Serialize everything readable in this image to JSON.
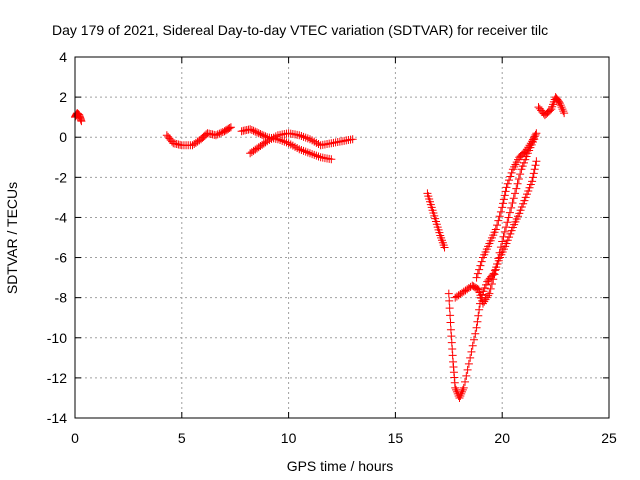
{
  "chart_data": {
    "type": "scatter",
    "title": "Day 179 of 2021, Sidereal Day-to-day VTEC variation (SDTVAR) for receiver tilc",
    "xlabel": "GPS time / hours",
    "ylabel": "SDTVAR / TECUs",
    "xlim": [
      0,
      25
    ],
    "ylim": [
      -14,
      4
    ],
    "xticks": [
      0,
      5,
      10,
      15,
      20,
      25
    ],
    "yticks": [
      -14,
      -12,
      -10,
      -8,
      -6,
      -4,
      -2,
      0,
      2,
      4
    ],
    "grid": true,
    "legend": "none",
    "marker": "plus",
    "colors": {
      "series": "#ff0000",
      "grid": "#a0a0a0",
      "axes": "#000000"
    },
    "segments": [
      {
        "x": [
          0.0,
          0.1,
          0.2,
          0.3
        ],
        "y": [
          1.0,
          1.2,
          1.1,
          0.8
        ]
      },
      {
        "x": [
          4.3,
          4.6,
          5.0,
          5.5,
          5.9,
          6.2,
          6.6,
          7.0,
          7.3
        ],
        "y": [
          0.1,
          -0.3,
          -0.4,
          -0.4,
          -0.1,
          0.2,
          0.1,
          0.3,
          0.5
        ]
      },
      {
        "x": [
          7.8,
          8.2,
          8.6,
          9.0,
          9.5,
          10.0,
          10.5,
          11.0,
          11.5,
          12.0
        ],
        "y": [
          0.3,
          0.4,
          0.2,
          0.0,
          -0.1,
          -0.3,
          -0.6,
          -0.8,
          -1.0,
          -1.1
        ]
      },
      {
        "x": [
          8.2,
          8.6,
          9.0,
          9.5,
          10.0,
          10.5,
          11.0,
          11.5,
          12.0,
          12.5,
          13.0
        ],
        "y": [
          -0.8,
          -0.5,
          -0.2,
          0.1,
          0.2,
          0.1,
          -0.1,
          -0.4,
          -0.3,
          -0.2,
          -0.1
        ]
      },
      {
        "x": [
          16.5,
          16.7,
          16.9,
          17.1,
          17.3
        ],
        "y": [
          -2.8,
          -3.5,
          -4.2,
          -4.9,
          -5.5
        ]
      },
      {
        "x": [
          17.5,
          17.6,
          17.7,
          17.8,
          18.0,
          18.2,
          18.5,
          18.8,
          19.0,
          19.3,
          19.6,
          19.9,
          20.2,
          20.5,
          20.8,
          21.1,
          21.4,
          21.6
        ],
        "y": [
          -7.8,
          -9.6,
          -11.2,
          -12.5,
          -13.0,
          -12.5,
          -11.0,
          -9.5,
          -8.0,
          -7.2,
          -6.8,
          -6.0,
          -5.3,
          -4.5,
          -3.8,
          -3.0,
          -2.2,
          -1.2
        ]
      },
      {
        "x": [
          17.8,
          18.2,
          18.6,
          18.9,
          19.1,
          19.4,
          19.7,
          20.0,
          20.3,
          20.6,
          20.9,
          21.2,
          21.5
        ],
        "y": [
          -8.0,
          -7.7,
          -7.4,
          -7.6,
          -8.3,
          -7.8,
          -6.6,
          -5.2,
          -4.0,
          -2.8,
          -1.6,
          -0.8,
          -0.1
        ]
      },
      {
        "x": [
          18.8,
          19.1,
          19.4,
          19.7,
          20.0,
          20.2,
          20.5,
          20.8,
          21.1,
          21.4,
          21.6
        ],
        "y": [
          -7.0,
          -6.0,
          -5.3,
          -4.6,
          -3.5,
          -2.5,
          -1.6,
          -1.0,
          -0.7,
          -0.2,
          0.2
        ]
      },
      {
        "x": [
          21.7,
          22.0,
          22.3,
          22.5,
          22.7,
          22.9
        ],
        "y": [
          1.5,
          1.1,
          1.4,
          2.0,
          1.7,
          1.2
        ]
      }
    ]
  }
}
